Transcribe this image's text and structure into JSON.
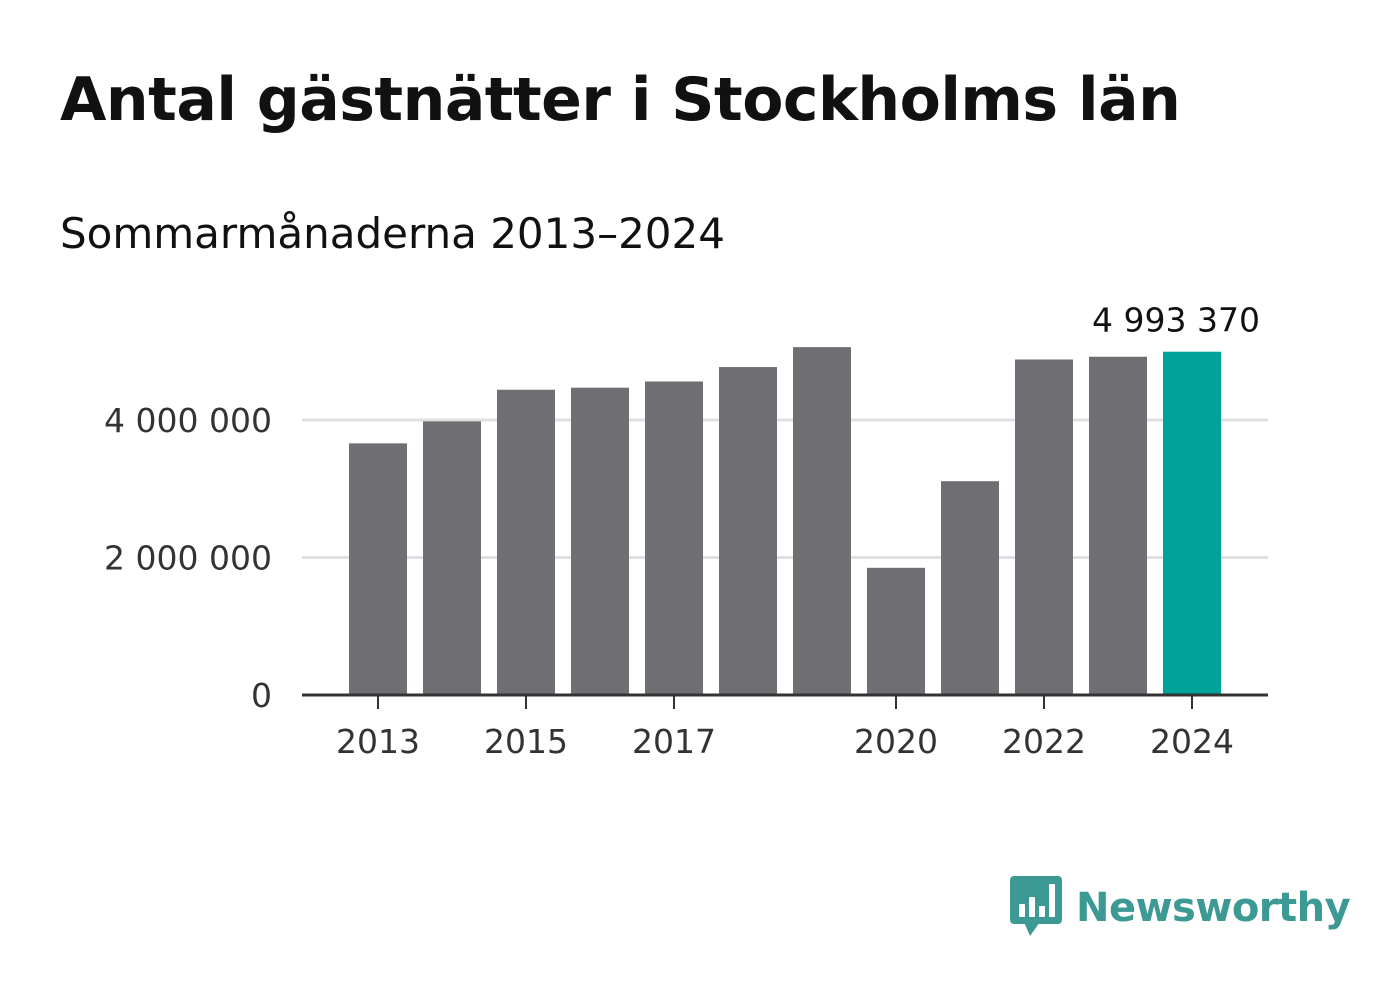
{
  "title": "Antal gästnätter i Stockholms län",
  "subtitle": "Sommarmånaderna 2013–2024",
  "brand": {
    "name": "Newsworthy",
    "icon": "bar-chart-speech-bubble-icon",
    "color": "#3c9994"
  },
  "colors": {
    "bar": "#6e6e73",
    "highlight": "#00a39a",
    "grid": "#e0e0e0",
    "axis": "#333333"
  },
  "chart_data": {
    "type": "bar",
    "categories": [
      "2013",
      "2014",
      "2015",
      "2016",
      "2017",
      "2018",
      "2019",
      "2020",
      "2021",
      "2022",
      "2023",
      "2024"
    ],
    "values": [
      3660000,
      3980000,
      4440000,
      4470000,
      4560000,
      4770000,
      5060000,
      1850000,
      3110000,
      4880000,
      4920000,
      4993370
    ],
    "highlight_index": 11,
    "data_labels": [
      {
        "index": 11,
        "text": "4 993 370"
      }
    ],
    "x_tick_labels": [
      "2013",
      "2015",
      "2017",
      "2020",
      "2022",
      "2024"
    ],
    "y_ticks": [
      0,
      2000000,
      4000000
    ],
    "y_tick_labels": [
      "0",
      "2 000 000",
      "4 000 000"
    ],
    "ylim": [
      0,
      5400000
    ],
    "grid": true,
    "legend": "none"
  }
}
